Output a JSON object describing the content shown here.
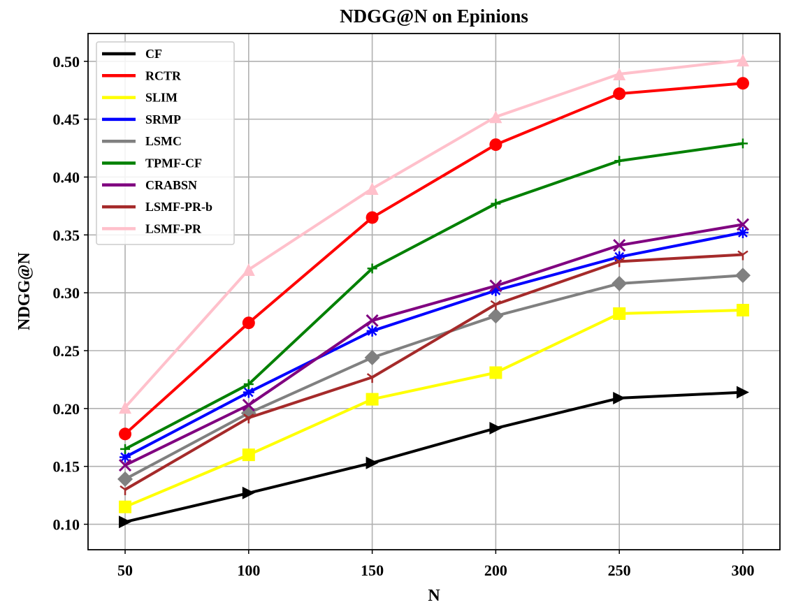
{
  "chart_data": {
    "type": "line",
    "title": "NDGG@N on Epinions",
    "xlabel": "N",
    "ylabel": "NDGG@N",
    "x": [
      50,
      100,
      150,
      200,
      250,
      300
    ],
    "xlim": [
      35,
      315
    ],
    "ylim": [
      0.078,
      0.524
    ],
    "xticks": [
      "50",
      "100",
      "150",
      "200",
      "250",
      "300"
    ],
    "yticks": [
      "0.10",
      "0.15",
      "0.20",
      "0.25",
      "0.30",
      "0.35",
      "0.40",
      "0.45",
      "0.50"
    ],
    "grid": true,
    "legend_position": "top-left",
    "series": [
      {
        "name": "CF",
        "color": "#000000",
        "marker": "triangle-right",
        "values": [
          0.102,
          0.127,
          0.153,
          0.183,
          0.209,
          0.214
        ]
      },
      {
        "name": "RCTR",
        "color": "#ff0000",
        "marker": "circle",
        "values": [
          0.178,
          0.274,
          0.365,
          0.428,
          0.472,
          0.481
        ]
      },
      {
        "name": "SLIM",
        "color": "#ffff00",
        "marker": "square",
        "values": [
          0.115,
          0.16,
          0.208,
          0.231,
          0.282,
          0.285
        ]
      },
      {
        "name": "SRMP",
        "color": "#0000ff",
        "marker": "star",
        "values": [
          0.158,
          0.214,
          0.267,
          0.302,
          0.331,
          0.352
        ]
      },
      {
        "name": "LSMC",
        "color": "#808080",
        "marker": "diamond",
        "values": [
          0.139,
          0.196,
          0.244,
          0.28,
          0.308,
          0.315
        ]
      },
      {
        "name": "TPMF-CF",
        "color": "#008000",
        "marker": "plus",
        "values": [
          0.165,
          0.221,
          0.321,
          0.377,
          0.414,
          0.429
        ]
      },
      {
        "name": "CRABSN",
        "color": "#800080",
        "marker": "x",
        "values": [
          0.151,
          0.203,
          0.276,
          0.306,
          0.341,
          0.359
        ]
      },
      {
        "name": "LSMF-PR-b",
        "color": "#a52a2a",
        "marker": "tri",
        "values": [
          0.13,
          0.192,
          0.227,
          0.29,
          0.327,
          0.333
        ]
      },
      {
        "name": "LSMF-PR",
        "color": "#ffc0cb",
        "marker": "triangle-up",
        "values": [
          0.201,
          0.32,
          0.39,
          0.452,
          0.489,
          0.501
        ]
      }
    ]
  }
}
